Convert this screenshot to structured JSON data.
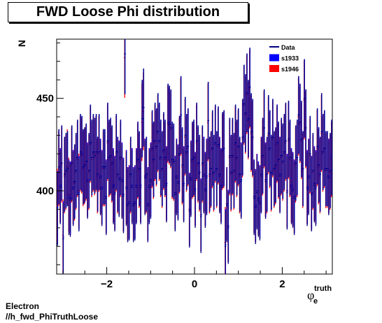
{
  "chart_data": {
    "type": "scatter",
    "title": "FWD Loose Phi distribution",
    "xlabel": "φ",
    "xlabel_sub": "e",
    "xlabel_sup": "truth",
    "ylabel": "N",
    "xlim": [
      -3.1416,
      3.1416
    ],
    "ylim": [
      355,
      482
    ],
    "xticks": [
      -2,
      0,
      2
    ],
    "yticks": [
      400,
      450
    ],
    "legend_position": "top-right",
    "legend": [
      {
        "name": "Data",
        "style": "line",
        "color": "#000080"
      },
      {
        "name": "s1933",
        "style": "box",
        "color": "#0000ff"
      },
      {
        "name": "s1946",
        "style": "box",
        "color": "#ff0000"
      }
    ],
    "series": [
      {
        "name": "Data",
        "color": "#000080",
        "values": [
          390,
          413,
          402,
          415,
          374,
          409,
          411,
          412,
          396,
          395,
          415,
          401,
          405,
          411,
          418,
          398,
          421,
          420,
          413,
          414,
          416,
          405,
          411,
          426,
          418,
          421,
          419,
          421,
          409,
          421,
          407,
          401,
          413,
          413,
          396,
          427,
          418,
          419,
          415,
          402,
          398,
          421,
          409,
          406,
          418,
          405,
          397,
          474,
          401,
          392,
          393,
          409,
          402,
          392,
          393,
          402,
          417,
          412,
          402,
          439,
          445,
          407,
          409,
          392,
          402,
          405,
          423,
          417,
          427,
          424,
          432,
          427,
          418,
          412,
          422,
          418,
          403,
          437,
          436,
          434,
          417,
          416,
          398,
          407,
          404,
          420,
          441,
          414,
          403,
          430,
          421,
          424,
          389,
          406,
          417,
          418,
          400,
          427,
          415,
          410,
          386,
          415,
          408,
          400,
          407,
          438,
          409,
          412,
          423,
          410,
          426,
          412,
          425,
          408,
          402,
          422,
          423,
          370,
          392,
          380,
          419,
          410,
          419,
          411,
          426,
          418,
          424,
          409,
          405,
          429,
          447,
          442,
          453,
          439,
          456,
          432,
          429,
          396,
          391,
          399,
          395,
          393,
          408,
          419,
          434,
          405,
          409,
          431,
          423,
          410,
          429,
          412,
          414,
          426,
          417,
          408,
          419,
          416,
          421,
          427,
          399,
          428,
          418,
          402,
          400,
          396,
          415,
          418,
          441,
          437,
          428,
          412,
          450,
          434,
          401,
          407,
          420,
          398,
          411,
          403,
          401,
          424,
          414,
          409,
          432,
          421,
          423,
          412,
          412,
          407,
          411,
          418
        ]
      },
      {
        "name": "s1933",
        "color": "#0000ff",
        "values": [
          391,
          413,
          403,
          415,
          375,
          409,
          411,
          412,
          397,
          396,
          415,
          402,
          405,
          411,
          418,
          399,
          421,
          420,
          413,
          414,
          416,
          406,
          411,
          426,
          418,
          421,
          419,
          421,
          409,
          421,
          408,
          402,
          413,
          413,
          397,
          427,
          418,
          419,
          415,
          403,
          399,
          421,
          409,
          407,
          418,
          406,
          398,
          474,
          402,
          393,
          394,
          409,
          403,
          393,
          394,
          403,
          417,
          412,
          403,
          439,
          445,
          408,
          409,
          393,
          403,
          406,
          423,
          417,
          427,
          424,
          432,
          427,
          418,
          412,
          422,
          418,
          404,
          437,
          436,
          434,
          417,
          416,
          399,
          408,
          405,
          420,
          441,
          414,
          404,
          430,
          421,
          424,
          390,
          407,
          417,
          418,
          401,
          427,
          415,
          410,
          387,
          415,
          409,
          401,
          408,
          438,
          409,
          412,
          423,
          410,
          426,
          412,
          425,
          409,
          403,
          422,
          423,
          371,
          393,
          381,
          419,
          410,
          419,
          411,
          426,
          418,
          424,
          409,
          406,
          429,
          447,
          442,
          453,
          439,
          456,
          432,
          429,
          397,
          392,
          400,
          396,
          394,
          409,
          419,
          434,
          406,
          409,
          431,
          423,
          410,
          429,
          412,
          414,
          426,
          417,
          409,
          419,
          416,
          421,
          427,
          400,
          428,
          418,
          403,
          401,
          397,
          415,
          418,
          441,
          437,
          428,
          412,
          450,
          434,
          402,
          408,
          420,
          399,
          411,
          404,
          402,
          424,
          414,
          409,
          432,
          421,
          423,
          412,
          412,
          408,
          411,
          418
        ]
      },
      {
        "name": "s1946",
        "color": "#ff0000",
        "values": [
          392,
          412,
          403,
          414,
          376,
          408,
          410,
          413,
          398,
          396,
          414,
          402,
          404,
          410,
          417,
          400,
          420,
          419,
          412,
          413,
          415,
          406,
          410,
          425,
          417,
          420,
          418,
          420,
          408,
          420,
          408,
          402,
          412,
          412,
          397,
          426,
          417,
          418,
          414,
          403,
          399,
          420,
          408,
          407,
          417,
          406,
          398,
          472,
          402,
          393,
          394,
          408,
          403,
          393,
          394,
          403,
          416,
          411,
          403,
          437,
          443,
          408,
          408,
          393,
          403,
          406,
          422,
          416,
          426,
          423,
          431,
          426,
          417,
          411,
          421,
          417,
          404,
          436,
          435,
          433,
          416,
          415,
          399,
          408,
          405,
          419,
          440,
          413,
          404,
          429,
          420,
          423,
          390,
          407,
          416,
          417,
          401,
          426,
          414,
          409,
          387,
          414,
          409,
          401,
          408,
          437,
          408,
          411,
          422,
          409,
          425,
          411,
          424,
          409,
          403,
          421,
          422,
          372,
          393,
          381,
          418,
          409,
          418,
          410,
          425,
          417,
          423,
          408,
          406,
          428,
          446,
          441,
          452,
          438,
          455,
          431,
          428,
          397,
          392,
          400,
          396,
          394,
          409,
          418,
          433,
          406,
          408,
          430,
          422,
          409,
          428,
          411,
          413,
          425,
          416,
          409,
          418,
          415,
          420,
          426,
          400,
          427,
          417,
          403,
          401,
          397,
          414,
          417,
          440,
          436,
          427,
          411,
          449,
          433,
          402,
          408,
          419,
          399,
          410,
          404,
          402,
          423,
          413,
          408,
          431,
          420,
          422,
          411,
          411,
          408,
          410,
          417
        ]
      }
    ]
  },
  "footer": {
    "line1": "Electron",
    "line2": "//h_fwd_PhiTruthLoose"
  }
}
